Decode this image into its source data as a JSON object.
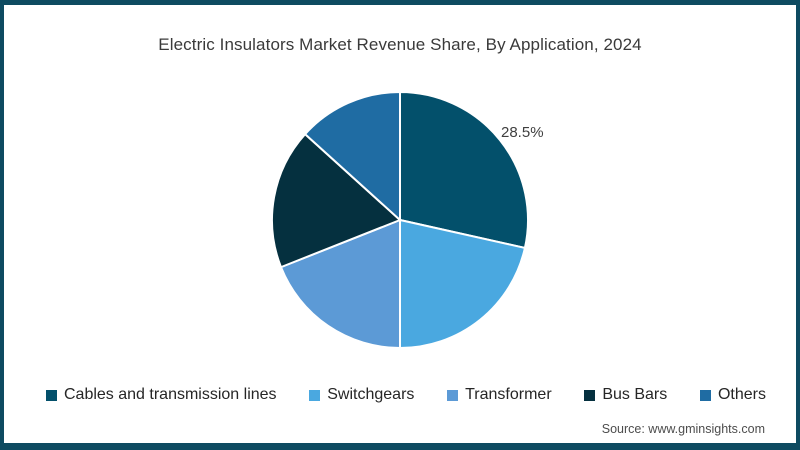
{
  "frame": {
    "accent_color": "#0e4b61",
    "background_color": "#ffffff"
  },
  "header": {
    "title": "Electric Insulators Market Revenue Share, By Application, 2024"
  },
  "footer": {
    "source": "Source: www.gminsights.com"
  },
  "chart_data": {
    "type": "pie",
    "title": "Electric Insulators Market Revenue Share, By Application, 2024",
    "categories": [
      "Cables and transmission lines",
      "Switchgears",
      "Transformer",
      "Bus Bars",
      "Others"
    ],
    "values": [
      28.5,
      21.5,
      19.0,
      17.7,
      13.3
    ],
    "unit": "%",
    "colors": [
      "#03506b",
      "#4aa8e0",
      "#5c9ad6",
      "#05303f",
      "#1f6ca3"
    ],
    "start_angle_deg": 0,
    "direction": "clockwise",
    "slice_stroke_color": "#ffffff",
    "slice_stroke_width": 2,
    "data_label": {
      "category": "Cables and transmission lines",
      "text": "28.5%"
    },
    "legend_position": "bottom",
    "legend_marker": "square"
  }
}
